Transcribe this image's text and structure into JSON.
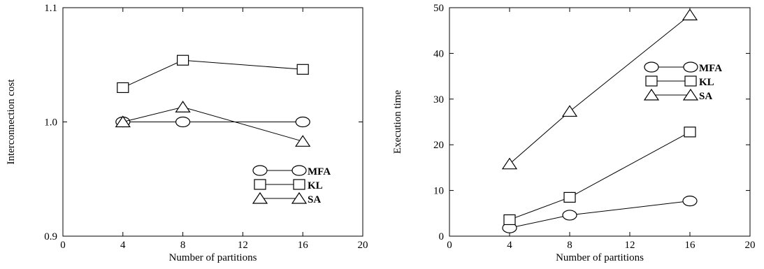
{
  "chart_data": [
    {
      "type": "line",
      "xlabel": "Number of partitions",
      "ylabel": "Interconnection cost",
      "xlim": [
        0,
        20
      ],
      "ylim": [
        0.9,
        1.1
      ],
      "xticks": [
        "0",
        "4",
        "8",
        "12",
        "16",
        "20"
      ],
      "yticks": [
        "0.9",
        "1.0",
        "1.1"
      ],
      "x": [
        4,
        8,
        16
      ],
      "legend_position": "lower-right",
      "series": [
        {
          "name": "MFA",
          "marker": "circle",
          "values": [
            1.0,
            1.0,
            1.0
          ]
        },
        {
          "name": "KL",
          "marker": "square",
          "values": [
            1.03,
            1.054,
            1.046
          ]
        },
        {
          "name": "SA",
          "marker": "triangle",
          "values": [
            1.0,
            1.013,
            0.983
          ]
        }
      ]
    },
    {
      "type": "line",
      "xlabel": "Number of partitions",
      "ylabel": "Execution time",
      "xlim": [
        0,
        20
      ],
      "ylim": [
        0,
        50
      ],
      "xticks": [
        "0",
        "4",
        "8",
        "12",
        "16",
        "20"
      ],
      "yticks": [
        "0",
        "10",
        "20",
        "30",
        "40",
        "50"
      ],
      "x": [
        4,
        8,
        16
      ],
      "legend_position": "upper-right",
      "series": [
        {
          "name": "MFA",
          "marker": "circle",
          "values": [
            1.8,
            4.6,
            7.7
          ]
        },
        {
          "name": "KL",
          "marker": "square",
          "values": [
            3.6,
            8.5,
            22.8
          ]
        },
        {
          "name": "SA",
          "marker": "triangle",
          "values": [
            15.8,
            27.3,
            48.4
          ]
        }
      ]
    }
  ]
}
